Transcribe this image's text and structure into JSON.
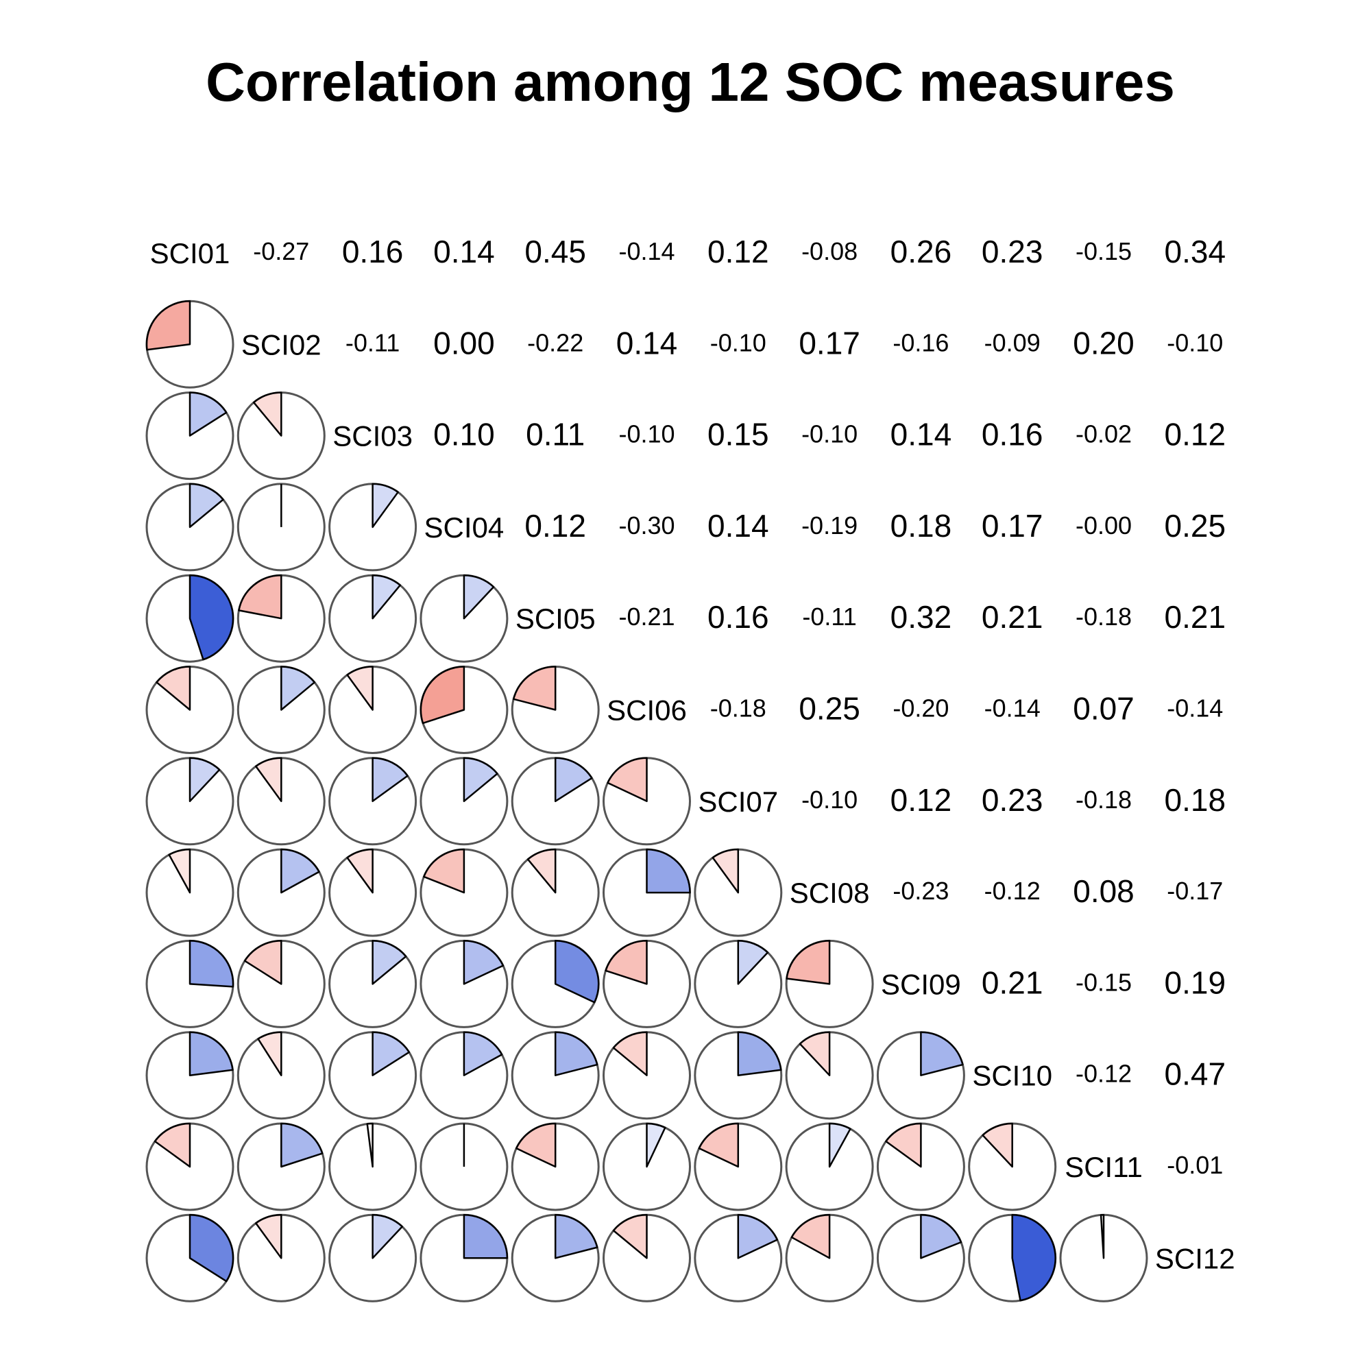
{
  "chart_data": {
    "type": "correlogram",
    "title": "Correlation among 12 SOC measures",
    "variables": [
      "SCI01",
      "SCI02",
      "SCI03",
      "SCI04",
      "SCI05",
      "SCI06",
      "SCI07",
      "SCI08",
      "SCI09",
      "SCI10",
      "SCI11",
      "SCI12"
    ],
    "lower_panel": "pie",
    "upper_panel": "coefficient",
    "positive_color": "#3a5cd6",
    "negative_color": "#ef6f5f",
    "correlations": [
      [
        1.0,
        -0.27,
        0.16,
        0.14,
        0.45,
        -0.14,
        0.12,
        -0.08,
        0.26,
        0.23,
        -0.15,
        0.34
      ],
      [
        -0.27,
        1.0,
        -0.11,
        0.0,
        -0.22,
        0.14,
        -0.1,
        0.17,
        -0.16,
        -0.09,
        0.2,
        -0.1
      ],
      [
        0.16,
        -0.11,
        1.0,
        0.1,
        0.11,
        -0.1,
        0.15,
        -0.1,
        0.14,
        0.16,
        -0.02,
        0.12
      ],
      [
        0.14,
        0.0,
        0.1,
        1.0,
        0.12,
        -0.3,
        0.14,
        -0.19,
        0.18,
        0.17,
        -0.0,
        0.25
      ],
      [
        0.45,
        -0.22,
        0.11,
        0.12,
        1.0,
        -0.21,
        0.16,
        -0.11,
        0.32,
        0.21,
        -0.18,
        0.21
      ],
      [
        -0.14,
        0.14,
        -0.1,
        -0.3,
        -0.21,
        1.0,
        -0.18,
        0.25,
        -0.2,
        -0.14,
        0.07,
        -0.14
      ],
      [
        0.12,
        -0.1,
        0.15,
        0.14,
        0.16,
        -0.18,
        1.0,
        -0.1,
        0.12,
        0.23,
        -0.18,
        0.18
      ],
      [
        -0.08,
        0.17,
        -0.1,
        -0.19,
        -0.11,
        0.25,
        -0.1,
        1.0,
        -0.23,
        -0.12,
        0.08,
        -0.17
      ],
      [
        0.26,
        -0.16,
        0.14,
        0.18,
        0.32,
        -0.2,
        0.12,
        -0.23,
        1.0,
        0.21,
        -0.15,
        0.19
      ],
      [
        0.23,
        -0.09,
        0.16,
        0.17,
        0.21,
        -0.14,
        0.23,
        -0.12,
        0.21,
        1.0,
        -0.12,
        0.47
      ],
      [
        -0.15,
        0.2,
        -0.02,
        -0.0,
        -0.18,
        0.07,
        -0.18,
        0.08,
        -0.15,
        -0.12,
        1.0,
        -0.01
      ],
      [
        0.34,
        -0.1,
        0.12,
        0.25,
        0.21,
        -0.14,
        0.18,
        -0.17,
        0.19,
        0.47,
        -0.01,
        1.0
      ]
    ],
    "coefficient_labels": [
      [
        "",
        "-0.27",
        "0.16",
        "0.14",
        "0.45",
        "-0.14",
        "0.12",
        "-0.08",
        "0.26",
        "0.23",
        "-0.15",
        "0.34"
      ],
      [
        "",
        "",
        "-0.11",
        "0.00",
        "-0.22",
        "0.14",
        "-0.10",
        "0.17",
        "-0.16",
        "-0.09",
        "0.20",
        "-0.10"
      ],
      [
        "",
        "",
        "",
        "0.10",
        "0.11",
        "-0.10",
        "0.15",
        "-0.10",
        "0.14",
        "0.16",
        "-0.02",
        "0.12"
      ],
      [
        "",
        "",
        "",
        "",
        "0.12",
        "-0.30",
        "0.14",
        "-0.19",
        "0.18",
        "0.17",
        "-0.00",
        "0.25"
      ],
      [
        "",
        "",
        "",
        "",
        "",
        "-0.21",
        "0.16",
        "-0.11",
        "0.32",
        "0.21",
        "-0.18",
        "0.21"
      ],
      [
        "",
        "",
        "",
        "",
        "",
        "",
        "-0.18",
        "0.25",
        "-0.20",
        "-0.14",
        "0.07",
        "-0.14"
      ],
      [
        "",
        "",
        "",
        "",
        "",
        "",
        "",
        "-0.10",
        "0.12",
        "0.23",
        "-0.18",
        "0.18"
      ],
      [
        "",
        "",
        "",
        "",
        "",
        "",
        "",
        "",
        "-0.23",
        "-0.12",
        "0.08",
        "-0.17"
      ],
      [
        "",
        "",
        "",
        "",
        "",
        "",
        "",
        "",
        "",
        "0.21",
        "-0.15",
        "0.19"
      ],
      [
        "",
        "",
        "",
        "",
        "",
        "",
        "",
        "",
        "",
        "",
        "-0.12",
        "0.47"
      ],
      [
        "",
        "",
        "",
        "",
        "",
        "",
        "",
        "",
        "",
        "",
        "",
        "-0.01"
      ],
      [
        "",
        "",
        "",
        "",
        "",
        "",
        "",
        "",
        "",
        "",
        "",
        ""
      ]
    ]
  }
}
